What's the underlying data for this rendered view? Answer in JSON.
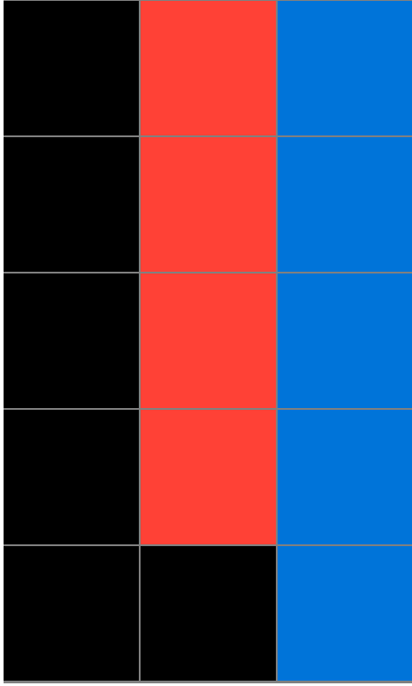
{
  "palette": {
    "black": "#000000",
    "red": "#ff4136",
    "blue": "#0074d9",
    "grid_line": "#808080"
  },
  "board": {
    "rows": 5,
    "cols": 3,
    "cells": [
      [
        "black",
        "red",
        "blue"
      ],
      [
        "black",
        "red",
        "blue"
      ],
      [
        "black",
        "red",
        "blue"
      ],
      [
        "black",
        "red",
        "blue"
      ],
      [
        "black",
        "black",
        "blue"
      ]
    ]
  }
}
